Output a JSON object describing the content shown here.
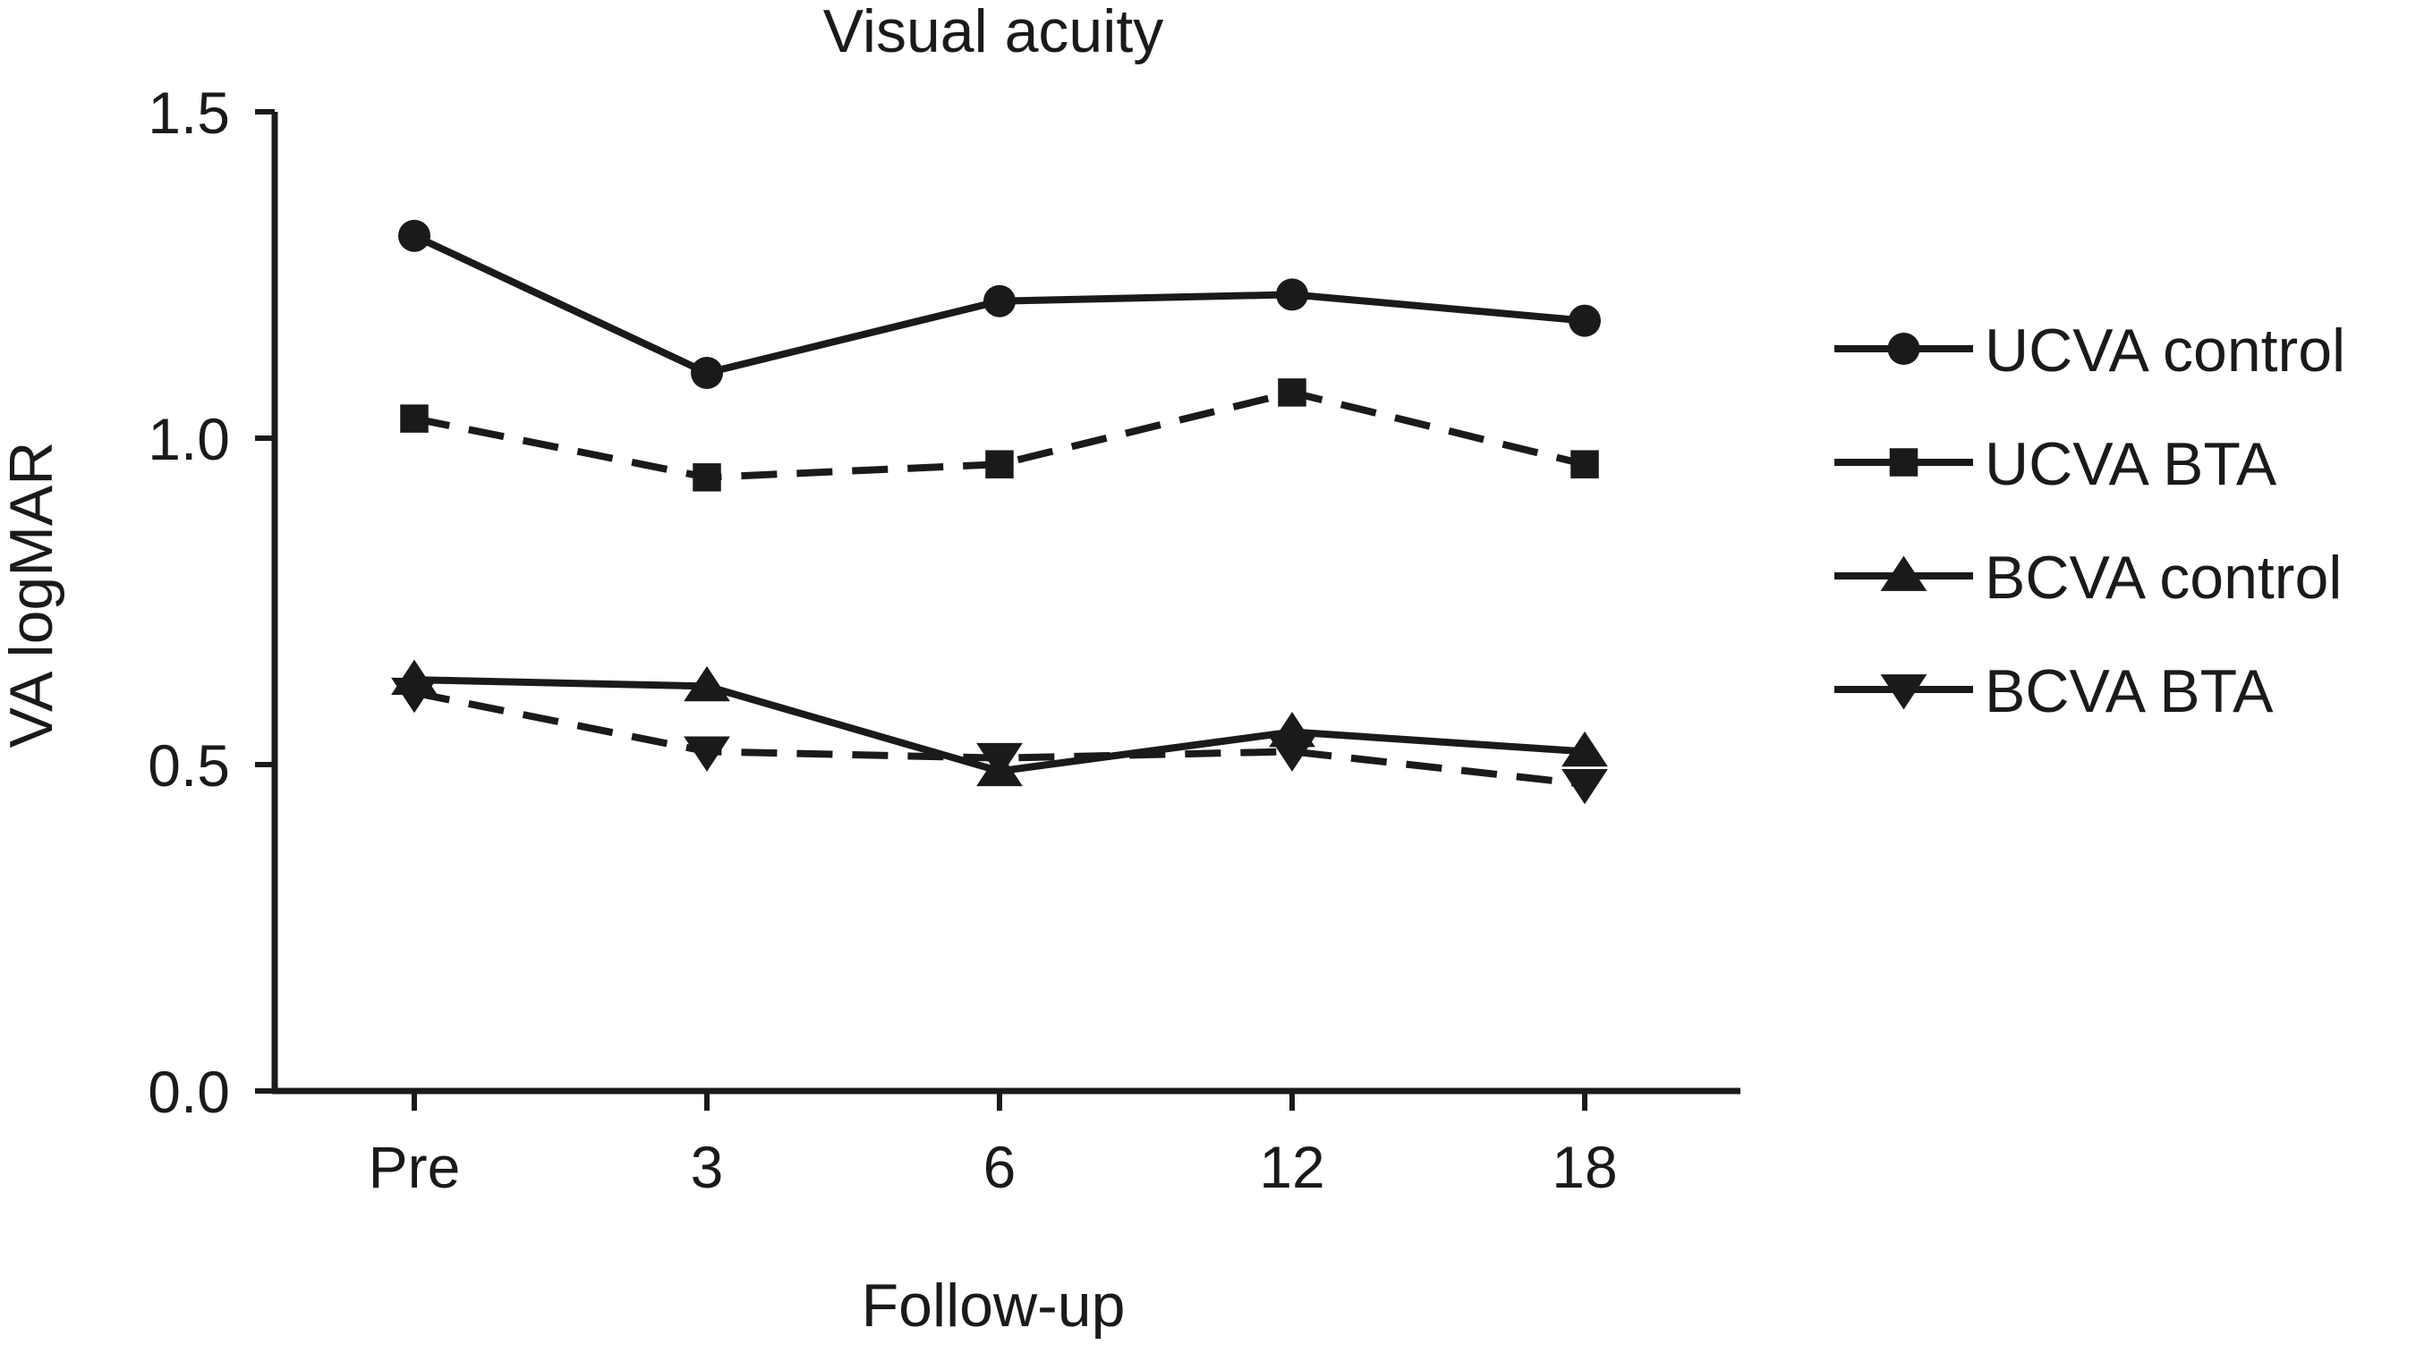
{
  "chart_data": {
    "type": "line",
    "title": "Visual acuity",
    "xlabel": "Follow-up",
    "ylabel": "VA logMAR",
    "categories": [
      "Pre",
      "3",
      "6",
      "12",
      "18"
    ],
    "ylim": [
      0.0,
      1.5
    ],
    "yticks": [
      "0.0",
      "0.5",
      "1.0",
      "1.5"
    ],
    "grid": false,
    "legend_position": "right",
    "series": [
      {
        "name": "UCVA control",
        "values": [
          1.31,
          1.1,
          1.21,
          1.22,
          1.18
        ],
        "marker": "circle",
        "dash": "solid"
      },
      {
        "name": "UCVA BTA",
        "values": [
          1.03,
          0.94,
          0.96,
          1.07,
          0.96
        ],
        "marker": "square",
        "dash": "dashed"
      },
      {
        "name": "BCVA control",
        "values": [
          0.63,
          0.62,
          0.49,
          0.55,
          0.52
        ],
        "marker": "triangle-up",
        "dash": "solid"
      },
      {
        "name": "BCVA BTA",
        "values": [
          0.61,
          0.52,
          0.51,
          0.52,
          0.47
        ],
        "marker": "triangle-down",
        "dash": "dashed"
      }
    ],
    "color": "#1a1a1a"
  }
}
